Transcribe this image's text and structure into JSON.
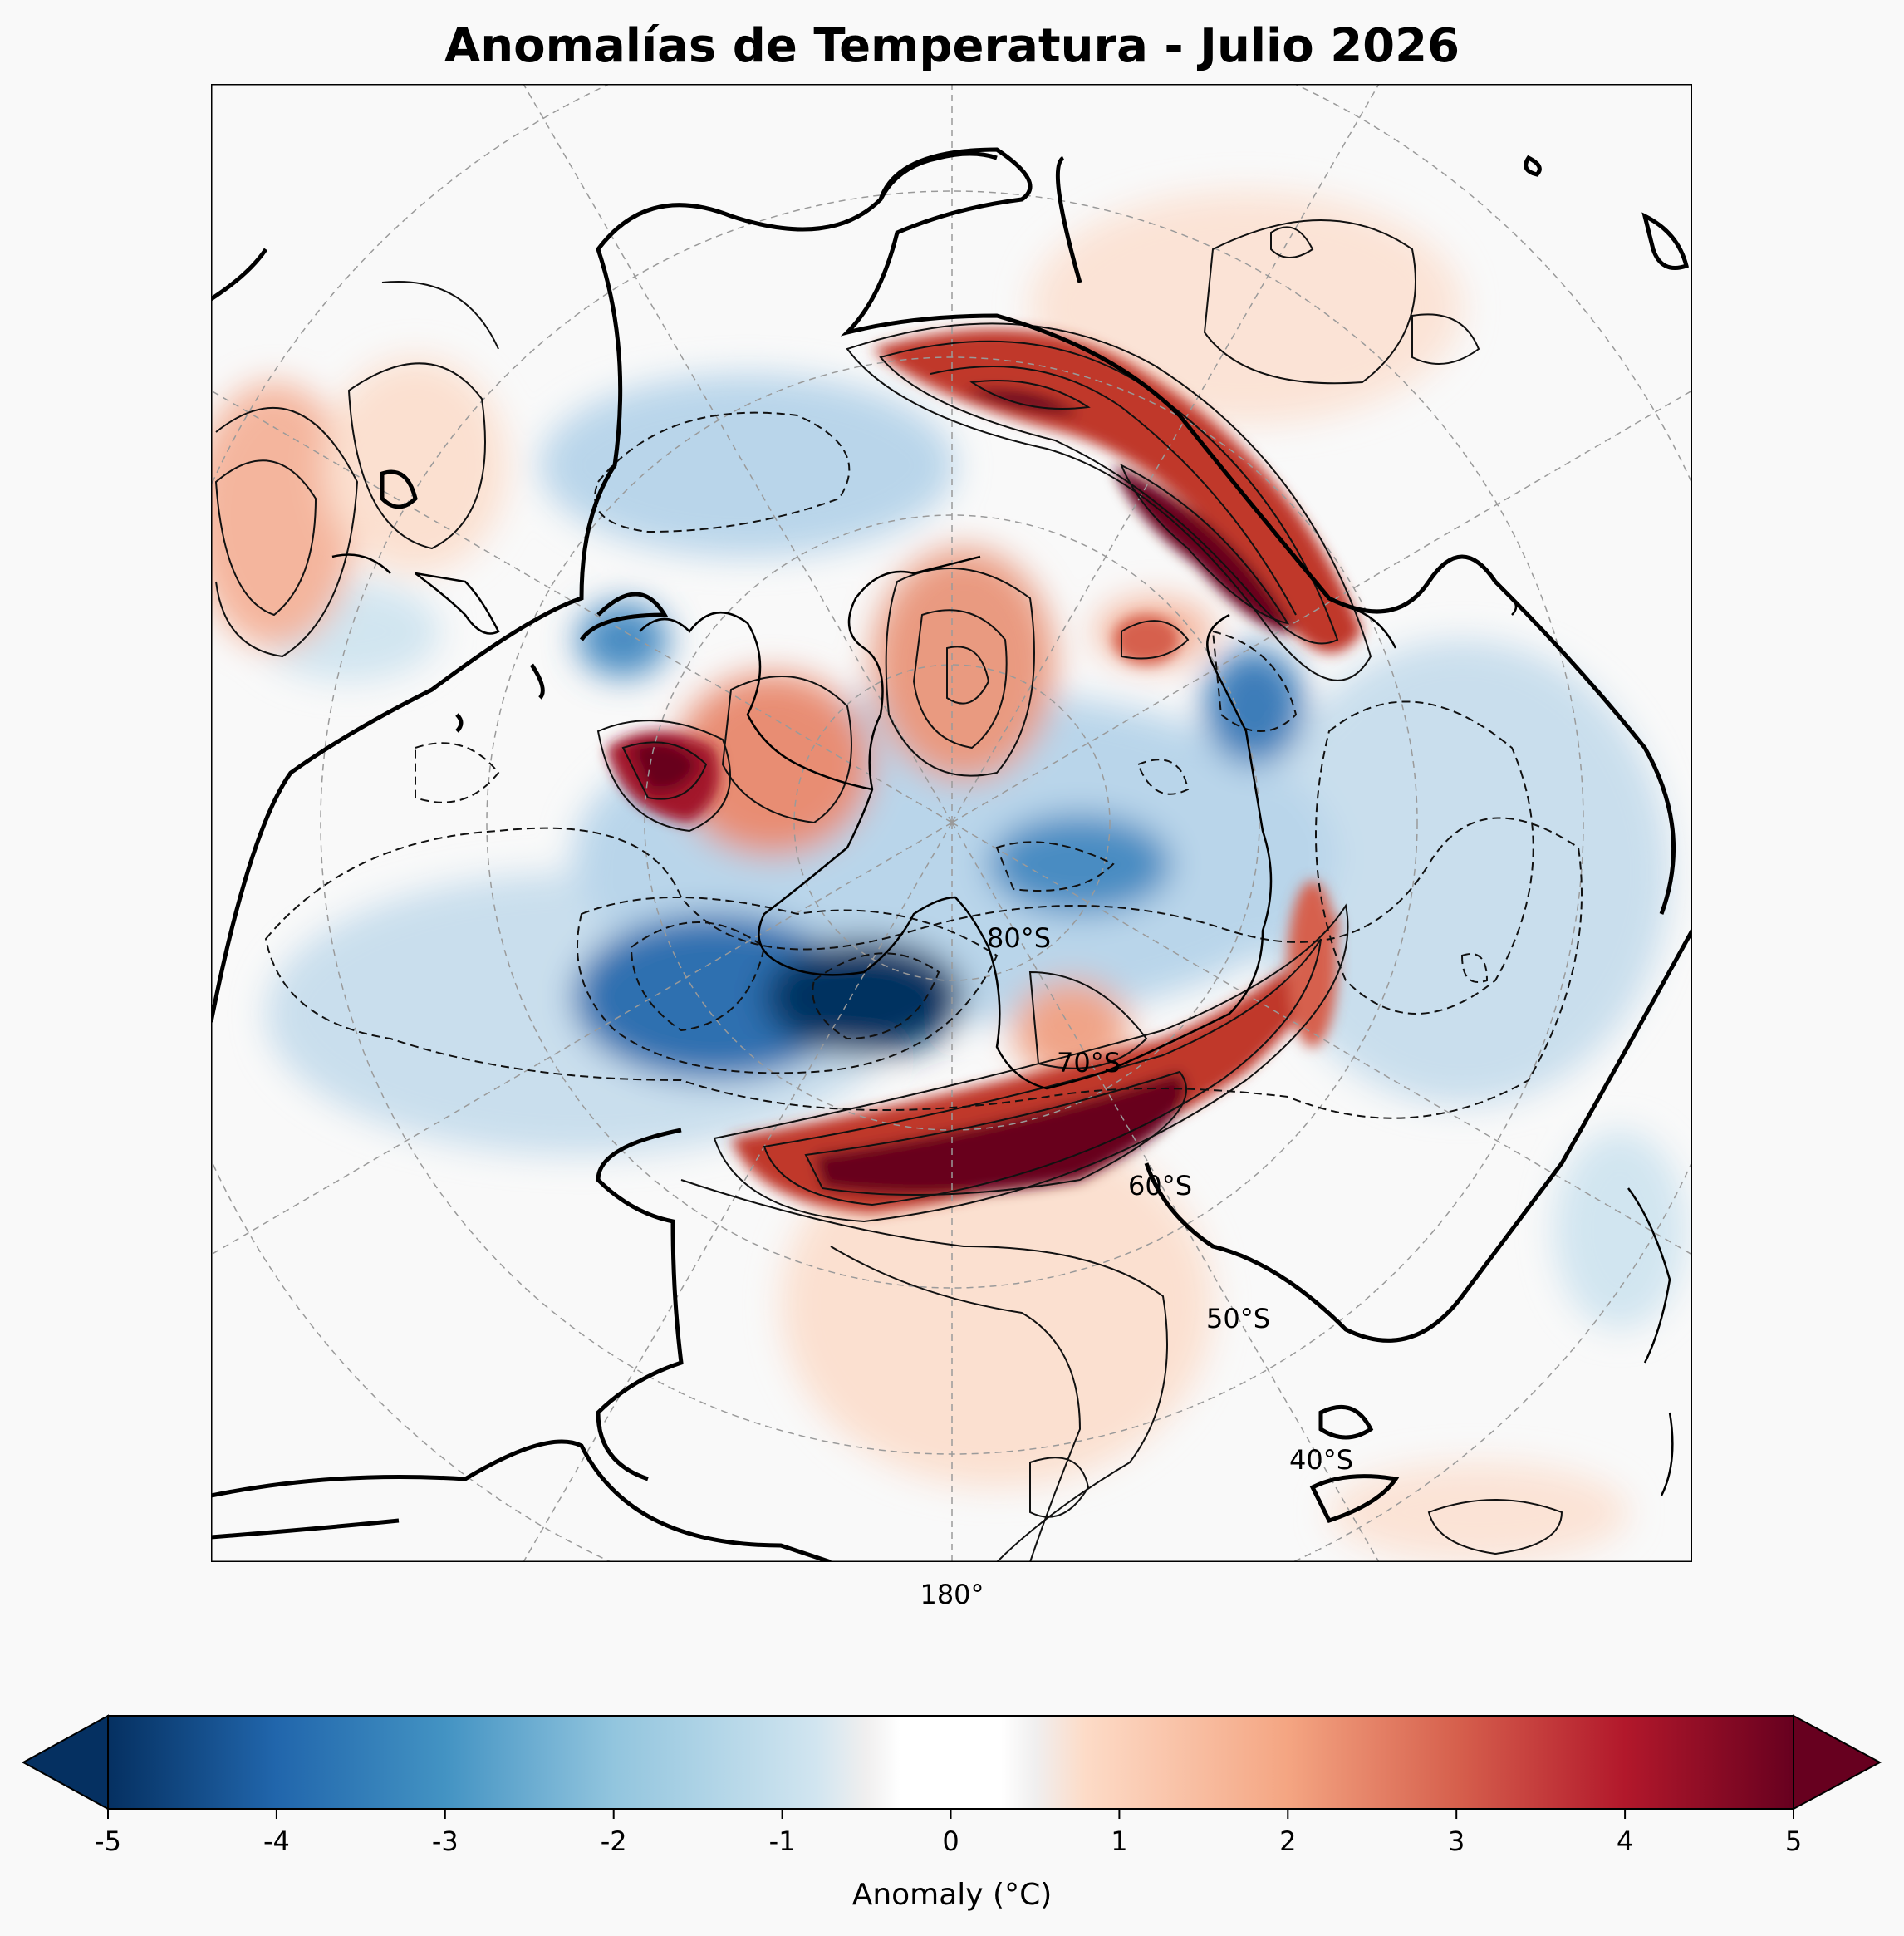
{
  "title": "Anomalías de Temperatura - Julio 2026",
  "map": {
    "projection": "south-polar-stereographic",
    "meridian_label": "180°",
    "latitude_labels": [
      "80°S",
      "70°S",
      "60°S",
      "50°S",
      "40°S"
    ],
    "contours": "solid = positive anomaly, dashed = negative anomaly, thick = zero line"
  },
  "colorbar": {
    "label": "Anomaly (°C)",
    "ticks": [
      "-5",
      "-4",
      "-3",
      "-2",
      "-1",
      "0",
      "1",
      "2",
      "3",
      "4",
      "5"
    ],
    "range": [
      -5,
      5
    ],
    "extend": "both",
    "cmap": "RdBu_r",
    "colors": [
      "#053061",
      "#2166ac",
      "#4393c3",
      "#92c5de",
      "#d1e5f0",
      "#f7f7f7",
      "#fddbc7",
      "#f4a582",
      "#d6604d",
      "#b2182b",
      "#67001f"
    ]
  }
}
